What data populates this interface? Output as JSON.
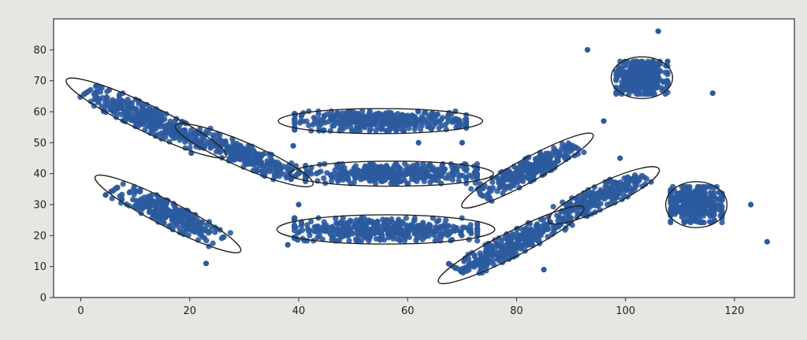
{
  "chart_data": {
    "type": "scatter",
    "title": "",
    "xlabel": "",
    "ylabel": "",
    "xlim": [
      -5,
      131
    ],
    "ylim": [
      0,
      90
    ],
    "xticks": [
      0,
      20,
      40,
      60,
      80,
      100,
      120
    ],
    "yticks": [
      0,
      10,
      20,
      30,
      40,
      50,
      60,
      70,
      80
    ],
    "grid": false,
    "legend": "none",
    "point_color": "#2b5a9e",
    "outline_color": "#222222",
    "clusters": [
      {
        "cx": 12,
        "cy": 58,
        "sx": 13,
        "sy": 3.2,
        "angle_deg": -40,
        "n": 320
      },
      {
        "cx": 16,
        "cy": 27,
        "sx": 12,
        "sy": 3.0,
        "angle_deg": -42,
        "n": 280
      },
      {
        "cx": 30,
        "cy": 46,
        "sx": 11,
        "sy": 3.0,
        "angle_deg": -37,
        "n": 240
      },
      {
        "cx": 55,
        "cy": 57,
        "sx": 15,
        "sy": 3.0,
        "angle_deg": 0,
        "n": 380
      },
      {
        "cx": 57,
        "cy": 40,
        "sx": 15,
        "sy": 3.0,
        "angle_deg": 0,
        "n": 380
      },
      {
        "cx": 56,
        "cy": 22,
        "sx": 16,
        "sy": 3.5,
        "angle_deg": 0,
        "n": 420
      },
      {
        "cx": 82,
        "cy": 41,
        "sx": 11,
        "sy": 2.8,
        "angle_deg": 44,
        "n": 280
      },
      {
        "cx": 79,
        "cy": 17,
        "sx": 12,
        "sy": 3.0,
        "angle_deg": 42,
        "n": 300
      },
      {
        "cx": 96,
        "cy": 33,
        "sx": 9,
        "sy": 3.0,
        "angle_deg": 40,
        "n": 220
      },
      {
        "cx": 103,
        "cy": 71,
        "sx": 4.5,
        "sy": 5.0,
        "angle_deg": 0,
        "n": 380
      },
      {
        "cx": 113,
        "cy": 30,
        "sx": 4.5,
        "sy": 5.5,
        "angle_deg": 0,
        "n": 380
      }
    ],
    "outlier_points": [
      [
        38,
        17
      ],
      [
        40,
        30
      ],
      [
        39,
        49
      ],
      [
        23,
        11
      ],
      [
        62,
        50
      ],
      [
        70,
        50
      ],
      [
        93,
        80
      ],
      [
        126,
        18
      ],
      [
        123,
        30
      ],
      [
        96,
        57
      ],
      [
        85,
        9
      ],
      [
        106,
        86
      ],
      [
        116,
        66
      ],
      [
        99,
        45
      ]
    ]
  }
}
